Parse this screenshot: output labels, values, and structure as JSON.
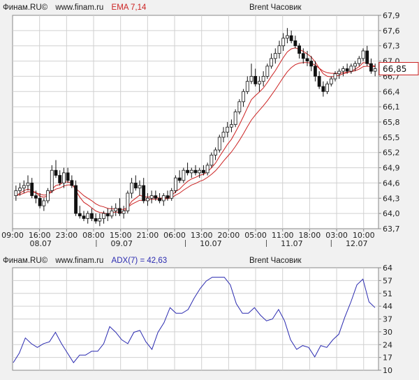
{
  "top_panel": {
    "header": {
      "site_label": "Финам.RU©",
      "url": "www.finam.ru",
      "indicator": "EMA 7,14",
      "instrument": "Brent Часовик"
    },
    "price_badge": "66,85",
    "y_ticks": [
      "67,9",
      "67,6",
      "67,3",
      "67,0",
      "66,7",
      "66,4",
      "66,1",
      "65,8",
      "65,5",
      "65,2",
      "64,9",
      "64,6",
      "64,3",
      "64,0",
      "63,7"
    ],
    "x_time_ticks": [
      "09:00",
      "16:00",
      "23:00",
      "08:00",
      "15:00",
      "21:00",
      "06:00",
      "13:00",
      "20:00",
      "05:00",
      "11:00",
      "18:00",
      "03:00",
      "10:00"
    ],
    "x_date_ticks": [
      "08.07",
      "09.07",
      "10.07",
      "11.07",
      "12.07"
    ]
  },
  "bottom_panel": {
    "header": {
      "site_label": "Финам.RU©",
      "url": "www.finam.ru",
      "indicator": "ADX(7) = 42,63",
      "instrument": "Brent Часовик"
    },
    "y_ticks": [
      "64",
      "57",
      "51",
      "44",
      "37",
      "30",
      "24",
      "17",
      "10"
    ]
  },
  "colors": {
    "candle": "#111111",
    "ema": "#cc2222",
    "adx": "#2a2ab0",
    "grid": "#d0d0d0",
    "frame": "#888888"
  },
  "chart_data": [
    {
      "type": "candlestick",
      "title": "Brent Часовик",
      "indicator": "EMA 7,14",
      "ylim": [
        63.7,
        67.9
      ],
      "last_price": 66.85,
      "grid": true,
      "candles": [
        [
          64.35,
          64.55,
          64.25,
          64.45
        ],
        [
          64.45,
          64.6,
          64.35,
          64.5
        ],
        [
          64.5,
          64.65,
          64.4,
          64.55
        ],
        [
          64.55,
          64.75,
          64.45,
          64.6
        ],
        [
          64.6,
          64.7,
          64.3,
          64.35
        ],
        [
          64.35,
          64.45,
          64.2,
          64.3
        ],
        [
          64.3,
          64.4,
          64.1,
          64.15
        ],
        [
          64.15,
          64.3,
          64.05,
          64.25
        ],
        [
          64.25,
          64.5,
          64.2,
          64.45
        ],
        [
          64.45,
          64.95,
          64.4,
          64.85
        ],
        [
          64.85,
          65.05,
          64.7,
          64.75
        ],
        [
          64.75,
          64.85,
          64.55,
          64.6
        ],
        [
          64.6,
          64.9,
          64.5,
          64.8
        ],
        [
          64.8,
          64.9,
          64.6,
          64.65
        ],
        [
          64.65,
          64.75,
          64.5,
          64.55
        ],
        [
          64.55,
          64.65,
          63.95,
          64.0
        ],
        [
          64.0,
          64.15,
          63.9,
          63.95
        ],
        [
          63.95,
          64.05,
          63.85,
          63.9
        ],
        [
          63.9,
          64.05,
          63.8,
          64.0
        ],
        [
          64.0,
          64.1,
          63.85,
          63.9
        ],
        [
          63.9,
          64.0,
          63.8,
          63.85
        ],
        [
          63.85,
          64.0,
          63.75,
          63.9
        ],
        [
          63.9,
          64.05,
          63.8,
          64.0
        ],
        [
          64.0,
          64.1,
          63.85,
          63.95
        ],
        [
          63.95,
          64.15,
          63.9,
          64.05
        ],
        [
          64.05,
          64.2,
          63.95,
          64.1
        ],
        [
          64.1,
          64.3,
          63.95,
          64.0
        ],
        [
          64.0,
          64.15,
          63.9,
          64.05
        ],
        [
          64.05,
          64.45,
          64.0,
          64.4
        ],
        [
          64.4,
          64.7,
          64.3,
          64.6
        ],
        [
          64.6,
          64.75,
          64.45,
          64.5
        ],
        [
          64.5,
          64.65,
          64.35,
          64.55
        ],
        [
          64.55,
          64.7,
          64.2,
          64.25
        ],
        [
          64.25,
          64.4,
          64.15,
          64.3
        ],
        [
          64.3,
          64.45,
          64.2,
          64.35
        ],
        [
          64.35,
          64.45,
          64.25,
          64.3
        ],
        [
          64.3,
          64.4,
          64.2,
          64.25
        ],
        [
          64.25,
          64.4,
          64.15,
          64.35
        ],
        [
          64.35,
          64.45,
          64.25,
          64.3
        ],
        [
          64.3,
          64.5,
          64.25,
          64.45
        ],
        [
          64.45,
          64.75,
          64.4,
          64.7
        ],
        [
          64.7,
          64.85,
          64.6,
          64.65
        ],
        [
          64.65,
          64.9,
          64.6,
          64.85
        ],
        [
          64.85,
          65.0,
          64.75,
          64.8
        ],
        [
          64.8,
          64.9,
          64.7,
          64.85
        ],
        [
          64.85,
          64.95,
          64.75,
          64.8
        ],
        [
          64.8,
          64.9,
          64.7,
          64.85
        ],
        [
          64.85,
          64.95,
          64.75,
          64.8
        ],
        [
          64.8,
          65.0,
          64.75,
          64.95
        ],
        [
          64.95,
          65.2,
          64.9,
          65.15
        ],
        [
          65.15,
          65.3,
          65.05,
          65.25
        ],
        [
          65.25,
          65.55,
          65.2,
          65.5
        ],
        [
          65.5,
          65.7,
          65.4,
          65.6
        ],
        [
          65.6,
          65.8,
          65.5,
          65.7
        ],
        [
          65.7,
          65.85,
          65.6,
          65.75
        ],
        [
          65.75,
          66.05,
          65.7,
          66.0
        ],
        [
          66.0,
          66.25,
          65.95,
          66.2
        ],
        [
          66.2,
          66.45,
          66.1,
          66.4
        ],
        [
          66.4,
          66.7,
          66.35,
          66.6
        ],
        [
          66.6,
          66.95,
          66.55,
          66.7
        ],
        [
          66.7,
          66.85,
          66.5,
          66.55
        ],
        [
          66.55,
          66.7,
          66.4,
          66.6
        ],
        [
          66.6,
          66.8,
          66.5,
          66.7
        ],
        [
          66.7,
          66.95,
          66.65,
          66.9
        ],
        [
          66.9,
          67.15,
          66.85,
          67.05
        ],
        [
          67.05,
          67.25,
          66.95,
          67.15
        ],
        [
          67.15,
          67.4,
          67.05,
          67.3
        ],
        [
          67.3,
          67.55,
          67.2,
          67.45
        ],
        [
          67.45,
          67.65,
          67.35,
          67.5
        ],
        [
          67.5,
          67.6,
          67.35,
          67.4
        ],
        [
          67.4,
          67.5,
          67.25,
          67.3
        ],
        [
          67.3,
          67.35,
          67.05,
          67.15
        ],
        [
          67.15,
          67.25,
          66.95,
          67.05
        ],
        [
          67.05,
          67.2,
          66.9,
          67.0
        ],
        [
          67.0,
          67.1,
          66.8,
          66.9
        ],
        [
          66.9,
          67.0,
          66.6,
          66.7
        ],
        [
          66.7,
          66.8,
          66.45,
          66.5
        ],
        [
          66.5,
          66.6,
          66.3,
          66.4
        ],
        [
          66.4,
          66.6,
          66.35,
          66.55
        ],
        [
          66.55,
          66.7,
          66.5,
          66.65
        ],
        [
          66.65,
          66.8,
          66.6,
          66.75
        ],
        [
          66.75,
          66.85,
          66.65,
          66.8
        ],
        [
          66.8,
          66.9,
          66.7,
          66.85
        ],
        [
          66.85,
          66.95,
          66.75,
          66.8
        ],
        [
          66.8,
          66.95,
          66.75,
          66.9
        ],
        [
          66.9,
          67.0,
          66.8,
          66.95
        ],
        [
          66.95,
          67.1,
          66.9,
          67.05
        ],
        [
          67.05,
          67.25,
          67.0,
          67.2
        ],
        [
          67.2,
          67.3,
          66.9,
          66.95
        ],
        [
          66.95,
          67.05,
          66.75,
          66.8
        ],
        [
          66.8,
          66.95,
          66.7,
          66.85
        ]
      ],
      "ema7": [
        64.35,
        64.4,
        64.45,
        64.48,
        64.45,
        64.41,
        64.34,
        64.32,
        64.35,
        64.48,
        64.55,
        64.57,
        64.62,
        64.62,
        64.6,
        64.45,
        64.32,
        64.22,
        64.17,
        64.11,
        64.05,
        64.02,
        64.01,
        63.99,
        64.01,
        64.03,
        64.02,
        64.03,
        64.12,
        64.24,
        64.3,
        64.36,
        64.33,
        64.32,
        64.33,
        64.32,
        64.3,
        64.31,
        64.31,
        64.35,
        64.43,
        64.48,
        64.56,
        64.63,
        64.68,
        64.71,
        64.75,
        64.77,
        64.82,
        64.9,
        64.99,
        65.12,
        65.24,
        65.36,
        65.46,
        65.6,
        65.75,
        65.91,
        66.08,
        66.24,
        66.32,
        66.39,
        66.47,
        66.58,
        66.7,
        66.81,
        66.94,
        67.07,
        67.18,
        67.24,
        67.26,
        67.23,
        67.19,
        67.14,
        67.08,
        66.98,
        66.86,
        66.75,
        66.7,
        66.69,
        66.7,
        66.72,
        66.75,
        66.77,
        66.8,
        66.84,
        66.89,
        66.97,
        66.96,
        66.92,
        66.9
      ],
      "ema14": [
        64.35,
        64.37,
        64.4,
        64.43,
        64.42,
        64.41,
        64.38,
        64.36,
        64.37,
        64.43,
        64.48,
        64.5,
        64.54,
        64.56,
        64.56,
        64.49,
        64.42,
        64.35,
        64.3,
        64.25,
        64.19,
        64.15,
        64.13,
        64.1,
        64.09,
        64.09,
        64.08,
        64.08,
        64.12,
        64.18,
        64.22,
        64.26,
        64.26,
        64.27,
        64.28,
        64.28,
        64.28,
        64.29,
        64.29,
        64.31,
        64.36,
        64.4,
        64.46,
        64.51,
        64.56,
        64.59,
        64.63,
        64.66,
        64.71,
        64.77,
        64.84,
        64.93,
        65.03,
        65.12,
        65.21,
        65.32,
        65.44,
        65.57,
        65.71,
        65.84,
        65.94,
        66.03,
        66.12,
        66.22,
        66.33,
        66.44,
        66.56,
        66.68,
        66.79,
        66.87,
        66.93,
        66.96,
        66.97,
        66.97,
        66.96,
        66.92,
        66.86,
        66.8,
        66.77,
        66.76,
        66.76,
        66.76,
        66.77,
        66.78,
        66.79,
        66.81,
        66.84,
        66.89,
        66.9,
        66.89,
        66.89
      ]
    },
    {
      "type": "line",
      "title": "Brent Часовик",
      "indicator": "ADX(7) = 42,63",
      "ylim": [
        10,
        64
      ],
      "grid": true,
      "series": [
        {
          "name": "ADX(7)",
          "values": [
            14,
            19,
            27,
            24,
            22,
            24,
            25,
            30,
            24,
            19,
            14,
            18,
            18,
            20,
            20,
            24,
            33,
            30,
            26,
            24,
            30,
            31,
            25,
            21,
            30,
            35,
            43,
            40,
            40,
            42,
            48,
            53,
            57,
            59,
            59,
            59,
            55,
            45,
            40,
            40,
            43,
            39,
            36,
            37,
            42,
            36,
            26,
            21,
            23,
            22,
            17,
            23,
            22,
            26,
            29,
            38,
            46,
            55,
            58,
            46,
            43
          ]
        }
      ]
    }
  ]
}
